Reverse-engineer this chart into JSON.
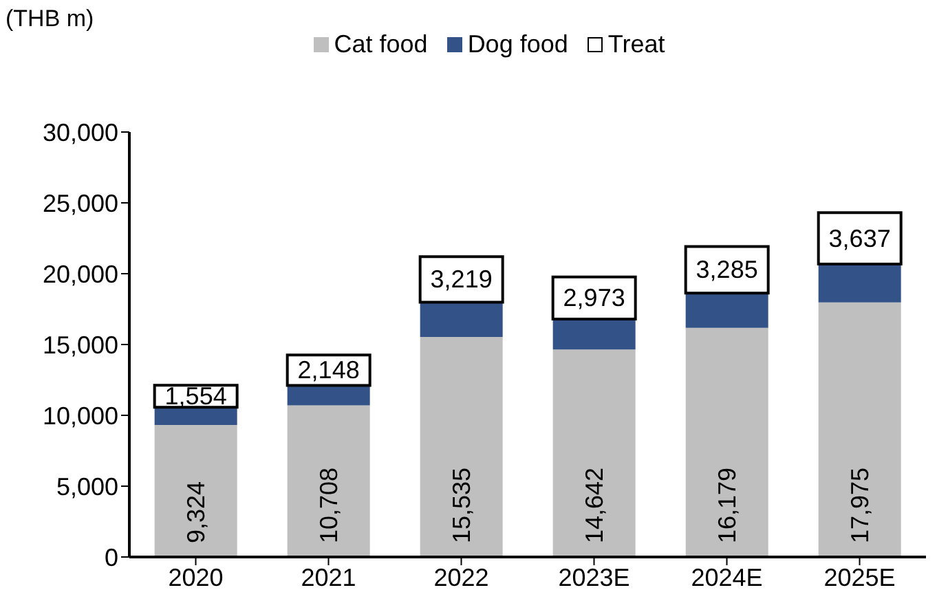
{
  "chart_data": {
    "type": "bar",
    "stacked": true,
    "ylabel": "(THB m)",
    "categories": [
      "2020",
      "2021",
      "2022",
      "2023E",
      "2024E",
      "2025E"
    ],
    "series": [
      {
        "name": "Cat food",
        "color": "#bfbfbf",
        "values": [
          9324,
          10708,
          15535,
          14642,
          16179,
          17975
        ],
        "value_labels": [
          "9,324",
          "10,708",
          "15,535",
          "14,642",
          "16,179",
          "17,975"
        ]
      },
      {
        "name": "Dog food",
        "color": "#335288",
        "values": [
          1250,
          1400,
          2450,
          2150,
          2450,
          2700
        ]
      },
      {
        "name": "Treat",
        "color": "#ffffff",
        "values": [
          1554,
          2148,
          3219,
          2973,
          3285,
          3637
        ],
        "value_labels": [
          "1,554",
          "2,148",
          "3,219",
          "2,973",
          "3,285",
          "3,637"
        ]
      }
    ],
    "ylim": [
      0,
      30000
    ],
    "yticks": [
      0,
      {
        "value": 5000,
        "label": "5,000"
      },
      {
        "value": 10000,
        "label": "10,000"
      },
      {
        "value": 15000,
        "label": "15,000"
      },
      {
        "value": 20000,
        "label": "20,000"
      },
      {
        "value": 25000,
        "label": "25,000"
      },
      {
        "value": 30000,
        "label": "30,000"
      }
    ],
    "grid": false,
    "legend": "top"
  }
}
